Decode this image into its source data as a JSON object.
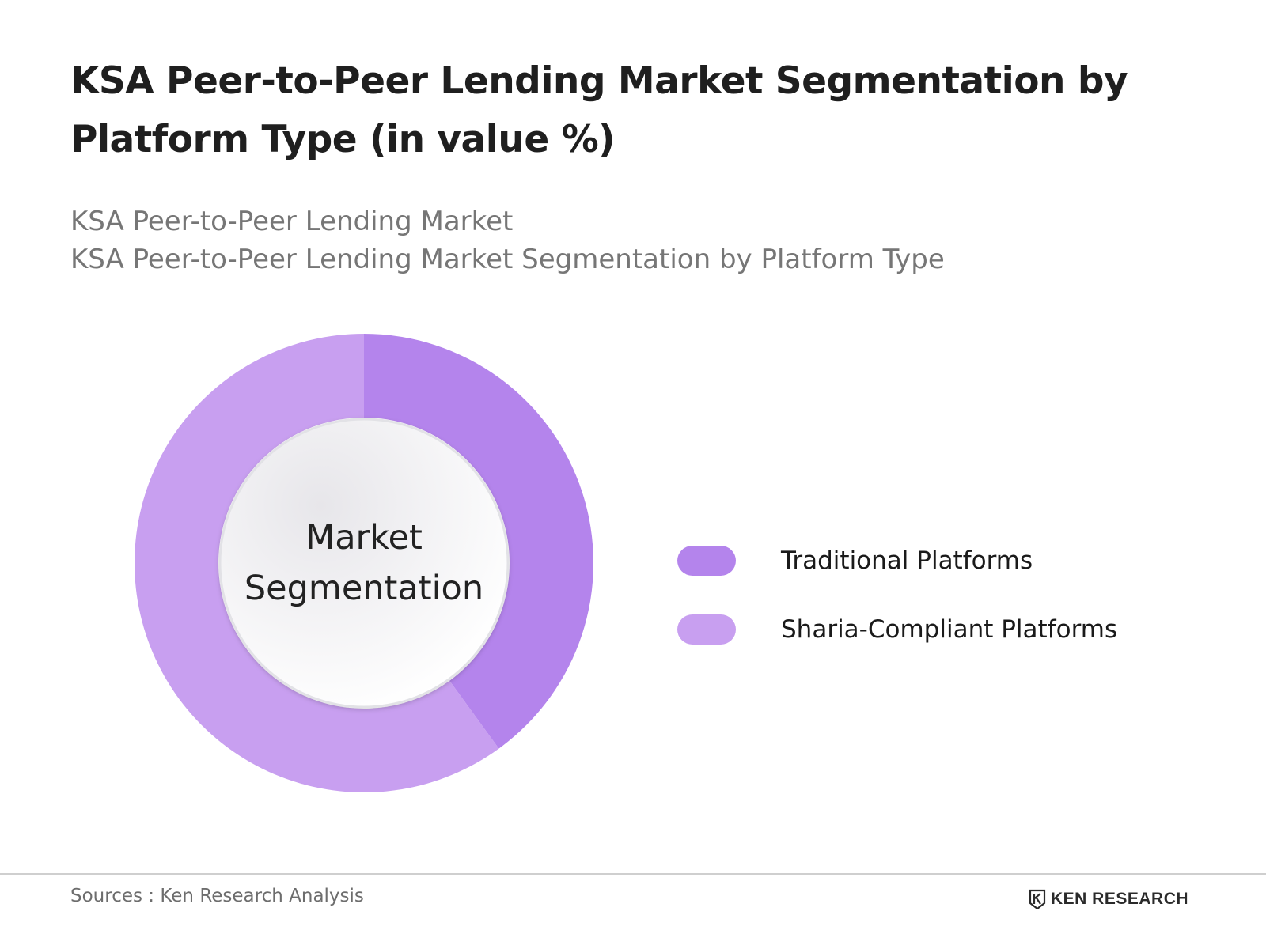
{
  "header": {
    "title": "KSA Peer-to-Peer Lending Market Segmentation by Platform Type (in value %)",
    "subtitle_1": "KSA Peer-to-Peer Lending Market",
    "subtitle_2": "KSA Peer-to-Peer Lending Market Segmentation by Platform Type"
  },
  "chart_data": {
    "type": "pie",
    "style": "donut",
    "center_label": [
      "Market",
      "Segmentation"
    ],
    "categories": [
      "Traditional Platforms",
      "Sharia-Compliant Platforms"
    ],
    "values": [
      40,
      60
    ],
    "colors": [
      "#b484ec",
      "#c89ff0"
    ],
    "legend_position": "right",
    "start_angle": "top, clockwise"
  },
  "footer": {
    "source": "Sources : Ken Research Analysis",
    "brand_icon": "ken-research-logo-icon",
    "brand": "KEN RESEARCH"
  }
}
